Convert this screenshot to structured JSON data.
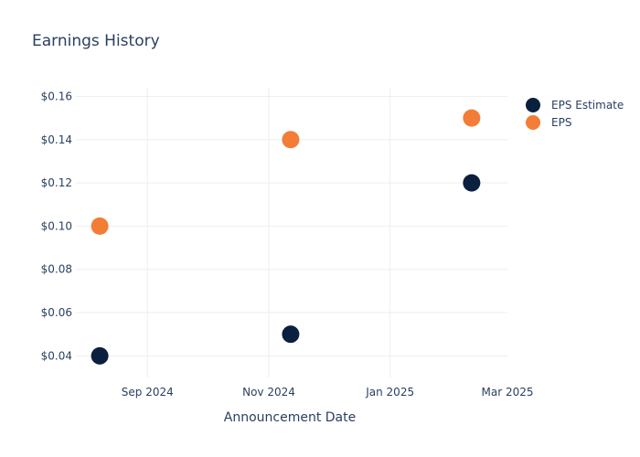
{
  "chart_data": {
    "type": "scatter",
    "title": "Earnings History",
    "xlabel": "Announcement Date",
    "ylabel": "",
    "grid": true,
    "legend_position": "top-right",
    "x_ticks": [
      {
        "date": "2024-09-01",
        "label": "Sep 2024"
      },
      {
        "date": "2024-11-01",
        "label": "Nov 2024"
      },
      {
        "date": "2025-01-01",
        "label": "Jan 2025"
      },
      {
        "date": "2025-03-01",
        "label": "Mar 2025"
      }
    ],
    "xlim": [
      "2024-07-27",
      "2025-03-01"
    ],
    "ylim": [
      0.03,
      0.164
    ],
    "y_ticks": [
      0.04,
      0.06,
      0.08,
      0.1,
      0.12,
      0.14,
      0.16
    ],
    "y_tick_labels": [
      "$0.04",
      "$0.06",
      "$0.08",
      "$0.10",
      "$0.12",
      "$0.14",
      "$0.16"
    ],
    "series": [
      {
        "name": "EPS Estimate",
        "color": "#0b1f3f",
        "points": [
          {
            "x": "2024-08-08",
            "y": 0.04
          },
          {
            "x": "2024-11-12",
            "y": 0.05
          },
          {
            "x": "2025-02-11",
            "y": 0.12
          }
        ]
      },
      {
        "name": "EPS",
        "color": "#f37d36",
        "points": [
          {
            "x": "2024-08-08",
            "y": 0.1
          },
          {
            "x": "2024-11-12",
            "y": 0.14
          },
          {
            "x": "2025-02-11",
            "y": 0.15
          }
        ]
      }
    ]
  }
}
